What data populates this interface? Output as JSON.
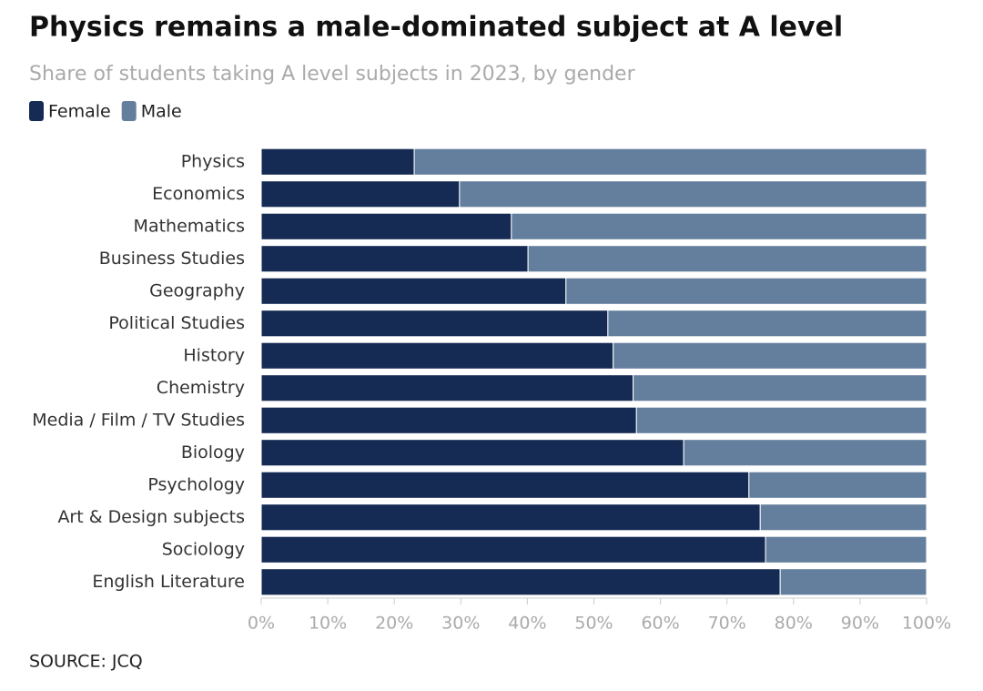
{
  "chart_data": {
    "type": "stacked-bar-horizontal",
    "title": "Physics remains a male-dominated subject at A level",
    "subtitle": "Share of students taking A level subjects in 2023, by gender",
    "source": "SOURCE: JCQ",
    "categories": [
      "Physics",
      "Economics",
      "Mathematics",
      "Business Studies",
      "Geography",
      "Political Studies",
      "History",
      "Chemistry",
      "Media / Film / TV Studies",
      "Biology",
      "Psychology",
      "Art & Design subjects",
      "Sociology",
      "English Literature"
    ],
    "series": [
      {
        "name": "Female",
        "color": "#152b54",
        "values": [
          23,
          29.8,
          37.6,
          40.1,
          45.8,
          52.1,
          52.9,
          55.9,
          56.4,
          63.5,
          73.3,
          75,
          75.8,
          78
        ]
      },
      {
        "name": "Male",
        "color": "#647f9d",
        "values": [
          77,
          70.2,
          62.4,
          59.9,
          54.2,
          47.9,
          47.1,
          44.1,
          43.6,
          36.5,
          26.7,
          25,
          24.2,
          22
        ]
      }
    ],
    "xlim": [
      0,
      100
    ],
    "xticks": [
      {
        "value": 0,
        "label": "0%"
      },
      {
        "value": 10,
        "label": "10%"
      },
      {
        "value": 20,
        "label": "20%"
      },
      {
        "value": 30,
        "label": "30%"
      },
      {
        "value": 40,
        "label": "40%"
      },
      {
        "value": 50,
        "label": "50%"
      },
      {
        "value": 60,
        "label": "60%"
      },
      {
        "value": 70,
        "label": "70%"
      },
      {
        "value": 80,
        "label": "80%"
      },
      {
        "value": 90,
        "label": "90%"
      },
      {
        "value": 100,
        "label": "100%"
      }
    ]
  }
}
